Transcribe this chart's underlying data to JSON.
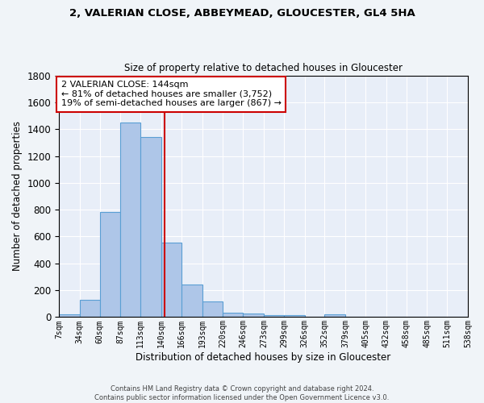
{
  "title1": "2, VALERIAN CLOSE, ABBEYMEAD, GLOUCESTER, GL4 5HA",
  "title2": "Size of property relative to detached houses in Gloucester",
  "xlabel": "Distribution of detached houses by size in Gloucester",
  "ylabel": "Number of detached properties",
  "bin_edges": [
    7,
    34,
    60,
    87,
    113,
    140,
    166,
    193,
    220,
    246,
    273,
    299,
    326,
    352,
    379,
    405,
    432,
    458,
    485,
    511,
    538
  ],
  "bar_heights": [
    20,
    130,
    780,
    1450,
    1340,
    555,
    245,
    115,
    35,
    25,
    15,
    15,
    0,
    20,
    0,
    0,
    0,
    0,
    0,
    0
  ],
  "bar_color": "#aec6e8",
  "bar_edge_color": "#5a9fd4",
  "property_size": 144,
  "vline_color": "#cc0000",
  "annotation_text": "2 VALERIAN CLOSE: 144sqm\n← 81% of detached houses are smaller (3,752)\n19% of semi-detached houses are larger (867) →",
  "annotation_box_color": "#ffffff",
  "annotation_box_edge": "#cc0000",
  "ylim": [
    0,
    1800
  ],
  "background_color": "#e8eef8",
  "fig_background": "#f0f4f8",
  "footnote": "Contains HM Land Registry data © Crown copyright and database right 2024.\nContains public sector information licensed under the Open Government Licence v3.0.",
  "tick_labels": [
    "7sqm",
    "34sqm",
    "60sqm",
    "87sqm",
    "113sqm",
    "140sqm",
    "166sqm",
    "193sqm",
    "220sqm",
    "246sqm",
    "273sqm",
    "299sqm",
    "326sqm",
    "352sqm",
    "379sqm",
    "405sqm",
    "432sqm",
    "458sqm",
    "485sqm",
    "511sqm",
    "538sqm"
  ]
}
